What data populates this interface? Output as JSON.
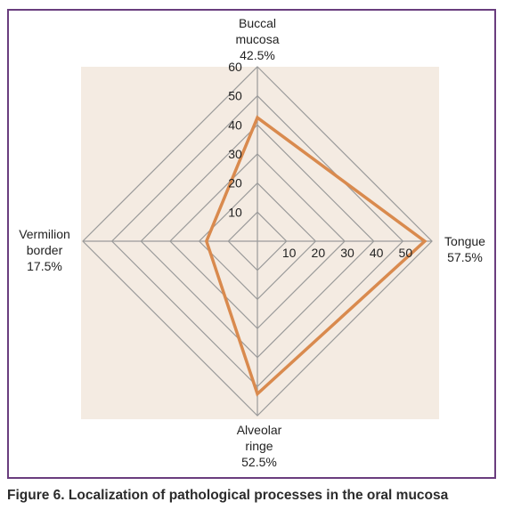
{
  "figure": {
    "caption": "Figure 6. Localization of pathological processes in the oral mucosa"
  },
  "colors": {
    "frame": "#6a3d7e",
    "plot_background": "#f4ebe2",
    "grid": "#9a9a9a",
    "series": "#d98a4e"
  },
  "chart_data": {
    "type": "radar",
    "axes": [
      {
        "label_lines": [
          "Buccal",
          "mucosa",
          "42.5%"
        ],
        "value": 42.5
      },
      {
        "label_lines": [
          "Tongue",
          "57.5%"
        ],
        "value": 57.5
      },
      {
        "label_lines": [
          "Alveolar",
          "ringe",
          "52.5%"
        ],
        "value": 52.5
      },
      {
        "label_lines": [
          "Vermilion",
          "border",
          "17.5%"
        ],
        "value": 17.5
      }
    ],
    "range": [
      0,
      60
    ],
    "grid_levels": [
      10,
      20,
      30,
      40,
      50,
      60
    ],
    "vertical_ticks": [
      "10",
      "20",
      "30",
      "40",
      "50",
      "60"
    ],
    "horizontal_ticks": [
      "10",
      "20",
      "30",
      "40",
      "50"
    ],
    "grid": true,
    "legend": "none"
  }
}
